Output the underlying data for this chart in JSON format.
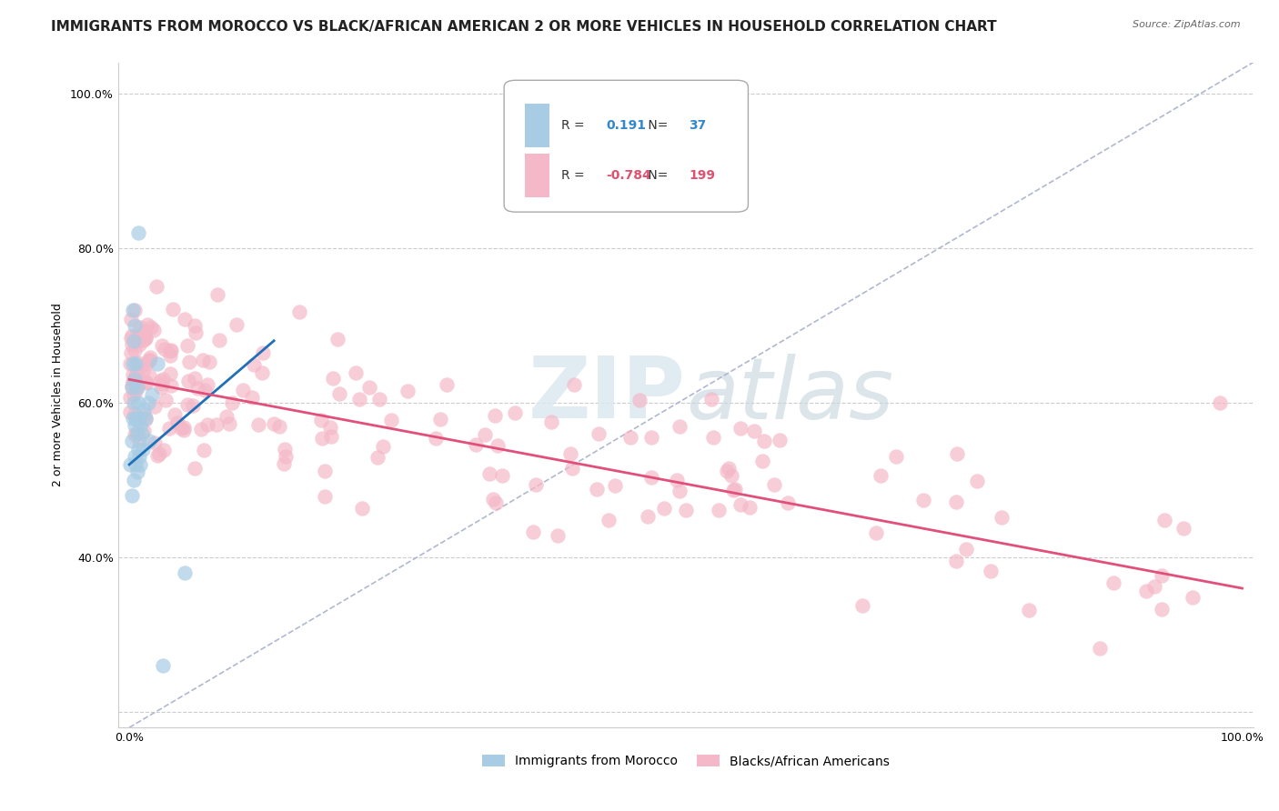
{
  "title": "IMMIGRANTS FROM MOROCCO VS BLACK/AFRICAN AMERICAN 2 OR MORE VEHICLES IN HOUSEHOLD CORRELATION CHART",
  "source": "Source: ZipAtlas.com",
  "xlabel": "",
  "ylabel": "2 or more Vehicles in Household",
  "xlim": [
    -0.01,
    1.01
  ],
  "ylim": [
    0.18,
    1.04
  ],
  "legend_r1": "0.191",
  "legend_n1": "37",
  "legend_r2": "-0.784",
  "legend_n2": "199",
  "blue_color": "#a8cce4",
  "pink_color": "#f4b8c8",
  "blue_line_color": "#2070b8",
  "pink_line_color": "#e0507a",
  "ref_line_color": "#b0b8d0",
  "background_color": "#ffffff",
  "title_fontsize": 11,
  "axis_label_fontsize": 9,
  "tick_fontsize": 9
}
